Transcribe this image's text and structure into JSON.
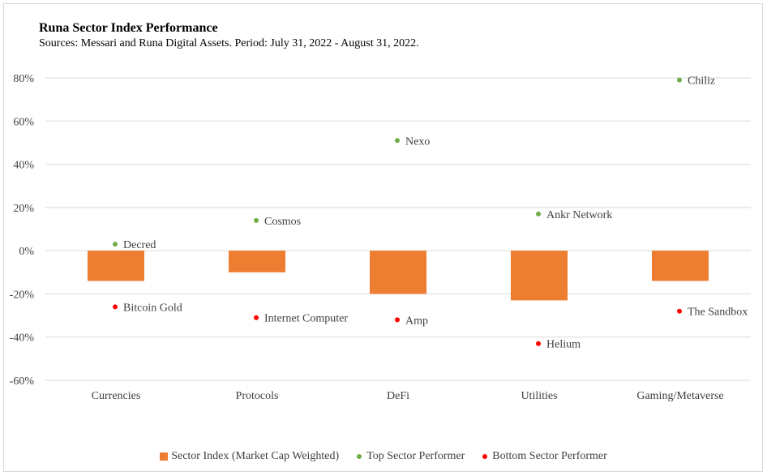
{
  "chart_data": {
    "type": "bar",
    "title": "Runa Sector Index Performance",
    "subtitle": "Sources: Messari and Runa Digital Assets. Period: July 31, 2022 - August 31, 2022.",
    "categories": [
      "Currencies",
      "Protocols",
      "DeFi",
      "Utilities",
      "Gaming/Metaverse"
    ],
    "ylim": [
      -60,
      80
    ],
    "yticks": [
      80,
      60,
      40,
      20,
      0,
      -20,
      -40,
      -60
    ],
    "ytick_labels": [
      "80%",
      "60%",
      "40%",
      "20%",
      "0%",
      "-20%",
      "-40%",
      "-60%"
    ],
    "grid": true,
    "legend_position": "bottom",
    "series": [
      {
        "name": "Sector Index (Market Cap Weighted)",
        "kind": "bar",
        "color": "#ed7d31",
        "values": [
          -14,
          -10,
          -20,
          -23,
          -14
        ]
      },
      {
        "name": "Top Sector Performer",
        "kind": "point",
        "color": "#70ad47",
        "values": [
          3,
          14,
          51,
          17,
          79
        ],
        "labels": [
          "Decred",
          "Cosmos",
          "Nexo",
          "Ankr Network",
          "Chiliz"
        ]
      },
      {
        "name": "Bottom Sector Performer",
        "kind": "point",
        "color": "#ff0000",
        "values": [
          -26,
          -31,
          -32,
          -43,
          -28
        ],
        "labels": [
          "Bitcoin Gold",
          "Internet Computer",
          "Amp",
          "Helium",
          "The Sandbox"
        ]
      }
    ]
  }
}
